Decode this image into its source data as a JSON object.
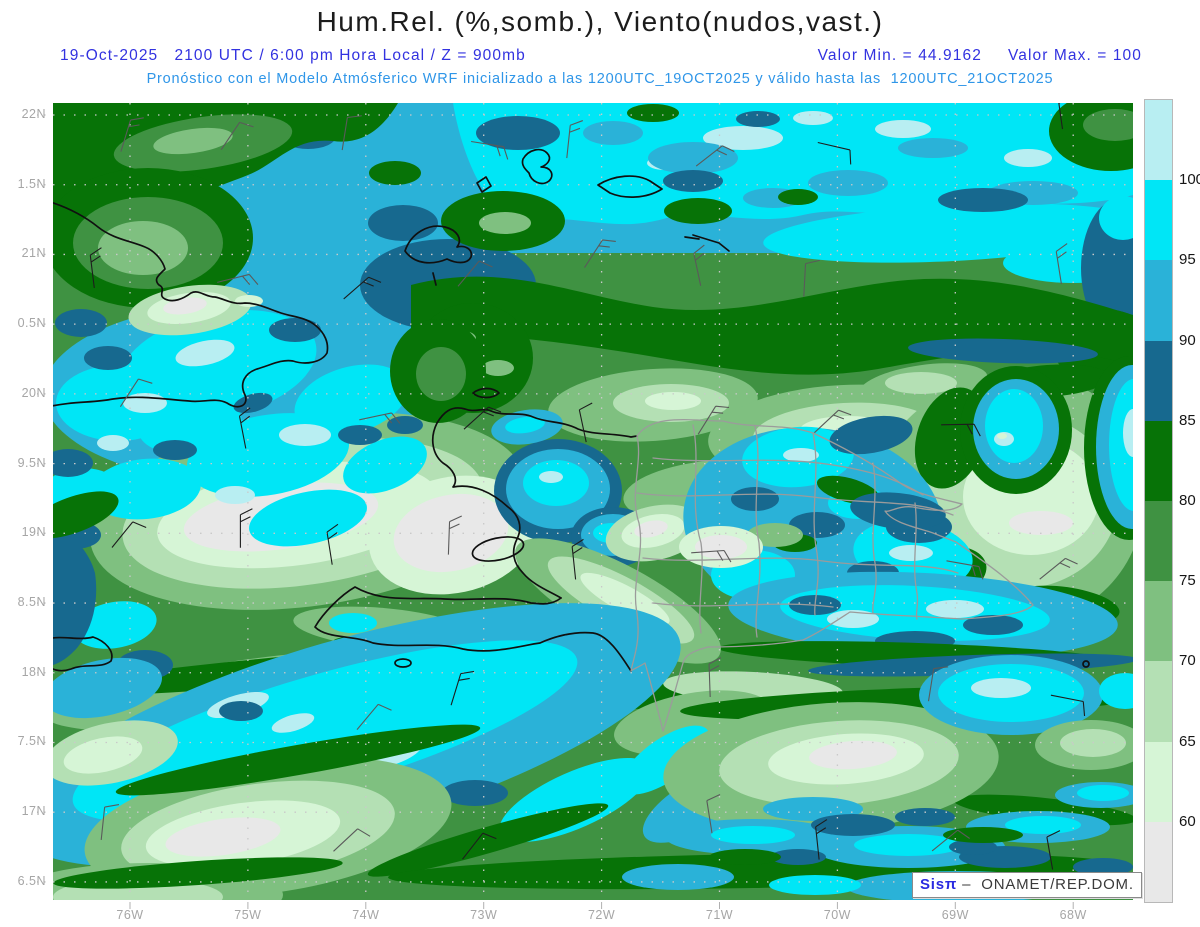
{
  "header": {
    "title": "Hum.Rel. (%,somb.), Viento(nudos,vast.)",
    "datetime_line": "19-Oct-2025   2100 UTC / 6:00 pm Hora Local / Z = 900mb",
    "valor_min": "Valor Min. = 44.9162",
    "valor_max": "Valor Max. = 100",
    "model_line": "Pronóstico con el Modelo Atmósferico WRF inicializado a las 1200UTC_19OCT2025 y válido hasta las  1200UTC_21OCT2025"
  },
  "map": {
    "lat_labels": [
      "22N",
      "1.5N",
      "21N",
      "0.5N",
      "20N",
      "9.5N",
      "19N",
      "8.5N",
      "18N",
      "7.5N",
      "17N",
      "6.5N"
    ],
    "lon_labels": [
      "76W",
      "75W",
      "74W",
      "73W",
      "72W",
      "71W",
      "70W",
      "69W",
      "68W"
    ],
    "watermark": {
      "brand": "Sisπ",
      "text": " –  ONAMET/REP.DOM."
    }
  },
  "colorbar": {
    "unit": "%",
    "tick_labels": [
      "100",
      "95",
      "90",
      "85",
      "80",
      "75",
      "70",
      "65",
      "60"
    ],
    "segment_colors_top_to_bottom": [
      "#b8eef2",
      "#00e6f6",
      "#2ab2d8",
      "#17698f",
      "#077307",
      "#3f9242",
      "#7fc080",
      "#b4e0b4",
      "#d6f5d6",
      "#e8e8e8"
    ]
  },
  "chart_data": {
    "type": "filled-contour-weather-map",
    "variable": "Relative humidity (%, shaded) with wind barbs (knots)",
    "level": "900mb",
    "valid_time": "19-Oct-2025 2100 UTC / 6:00 pm local",
    "value_min": 44.9162,
    "value_max": 100,
    "contour_levels": [
      60,
      65,
      70,
      75,
      80,
      85,
      90,
      95,
      100
    ],
    "lon_ticks": [
      "76W",
      "75W",
      "74W",
      "73W",
      "72W",
      "71W",
      "70W",
      "69W",
      "68W"
    ],
    "lat_ticks_as_shown": [
      "22N",
      "1.5N",
      "21N",
      "0.5N",
      "20N",
      "9.5N",
      "19N",
      "8.5N",
      "18N",
      "7.5N",
      "17N",
      "6.5N"
    ],
    "legend_position": "right",
    "grid": "dotted"
  },
  "palette": {
    "c100": "#b8eef2",
    "c95": "#00e6f6",
    "c90": "#2ab2d8",
    "c85": "#17698f",
    "c80": "#077307",
    "c75": "#3f9242",
    "c70": "#7fc080",
    "c65": "#b4e0b4",
    "c60": "#d6f5d6",
    "cbelow": "#e8e8e8",
    "header_blue": "#3232e0",
    "header_lightblue": "#2f96e8",
    "label_gray": "#a6a6a6"
  }
}
